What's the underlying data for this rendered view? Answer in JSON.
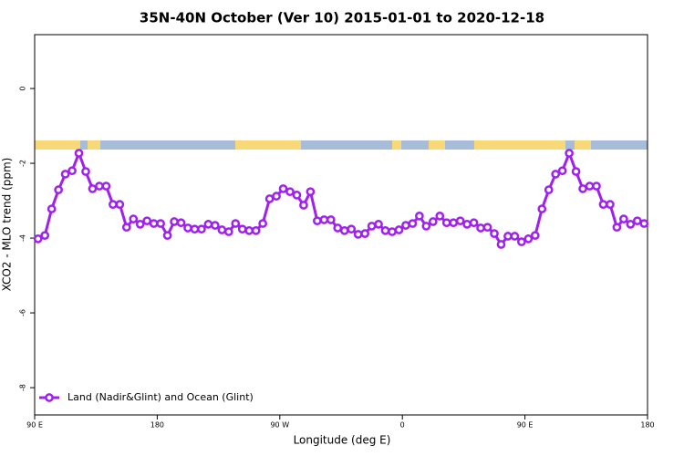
{
  "chart_data": {
    "type": "line",
    "title": "35N-40N October (Ver 10)   2015-01-01 to 2020-12-18",
    "x_label": "Longitude (deg E)",
    "y_label": "XCO2 - MLO trend (ppm)",
    "xlim": [
      90,
      540
    ],
    "ylim": [
      -8.73,
      1.44
    ],
    "xticks": [
      {
        "value": 90,
        "label": "90 E"
      },
      180,
      {
        "value": 270,
        "label": "90 W"
      },
      {
        "value": 360,
        "label": "0"
      },
      {
        "value": 450,
        "label": "90 E"
      },
      {
        "value": 540,
        "label": "180"
      }
    ],
    "yticks": [
      0,
      -2,
      -4,
      -6,
      -8
    ],
    "legend": "bottom-left",
    "x": [
      92.5,
      97.5,
      102.5,
      107.5,
      112.5,
      117.5,
      122.5,
      127.5,
      132.5,
      137.5,
      142.5,
      147.5,
      152.5,
      157.5,
      162.5,
      167.5,
      172.5,
      177.5,
      182.5,
      187.5,
      192.5,
      197.5,
      202.5,
      207.5,
      212.5,
      217.5,
      222.5,
      227.5,
      232.5,
      237.5,
      242.5,
      247.5,
      252.5,
      257.5,
      262.5,
      267.5,
      272.5,
      277.5,
      282.5,
      287.5,
      292.5,
      297.5,
      302.5,
      307.5,
      312.5,
      317.5,
      322.5,
      327.5,
      332.5,
      337.5,
      342.5,
      347.5,
      352.5,
      357.5,
      362.5,
      367.5,
      372.5,
      377.5,
      382.5,
      387.5,
      392.5,
      397.5,
      402.5,
      407.5,
      412.5,
      417.5,
      422.5,
      427.5,
      432.5,
      437.5,
      442.5,
      447.5,
      452.5,
      457.5,
      462.5,
      467.5,
      472.5,
      477.5,
      482.5,
      487.5,
      492.5,
      497.5,
      502.5,
      507.5,
      512.5,
      517.5,
      522.5,
      527.5,
      532.5,
      537.5
    ],
    "series": [
      {
        "name": "Land (Nadir&Glint) and Ocean (Glint)",
        "color": "#a020f0",
        "values": [
          -4.02,
          -3.93,
          -3.22,
          -2.71,
          -2.29,
          -2.2,
          -1.73,
          -2.22,
          -2.68,
          -2.61,
          -2.61,
          -3.1,
          -3.1,
          -3.71,
          -3.49,
          -3.63,
          -3.54,
          -3.61,
          -3.61,
          -3.93,
          -3.56,
          -3.59,
          -3.73,
          -3.76,
          -3.76,
          -3.63,
          -3.66,
          -3.78,
          -3.83,
          -3.61,
          -3.76,
          -3.8,
          -3.8,
          -3.61,
          -2.95,
          -2.88,
          -2.68,
          -2.76,
          -2.85,
          -3.12,
          -2.76,
          -3.54,
          -3.51,
          -3.51,
          -3.73,
          -3.8,
          -3.76,
          -3.9,
          -3.88,
          -3.68,
          -3.63,
          -3.8,
          -3.83,
          -3.78,
          -3.66,
          -3.61,
          -3.41,
          -3.68,
          -3.56,
          -3.41,
          -3.59,
          -3.59,
          -3.54,
          -3.63,
          -3.59,
          -3.73,
          -3.71,
          -3.88,
          -4.17,
          -3.95,
          -3.95,
          -4.1,
          -4.02,
          -3.93,
          -3.22,
          -2.71,
          -2.29,
          -2.2,
          -1.73,
          -2.22,
          -2.68,
          -2.61,
          -2.61,
          -3.1,
          -3.1,
          -3.71,
          -3.49,
          -3.63,
          -3.54,
          -3.61
        ]
      }
    ]
  }
}
